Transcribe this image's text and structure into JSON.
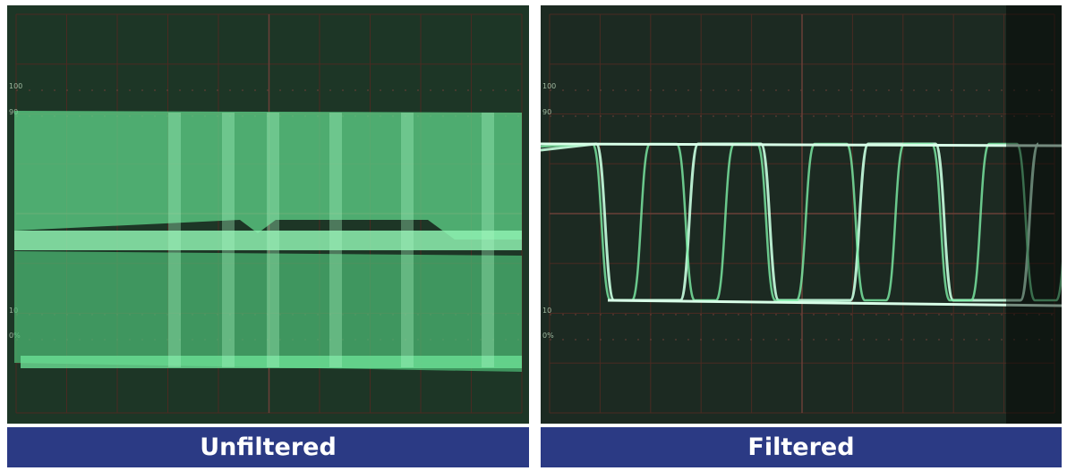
{
  "panels": [
    {
      "caption": "Unfiltered",
      "screen_labels": [
        "100",
        "90",
        "10",
        "0%"
      ]
    },
    {
      "caption": "Filtered",
      "screen_labels": [
        "100",
        "90",
        "10",
        "0%"
      ]
    }
  ]
}
